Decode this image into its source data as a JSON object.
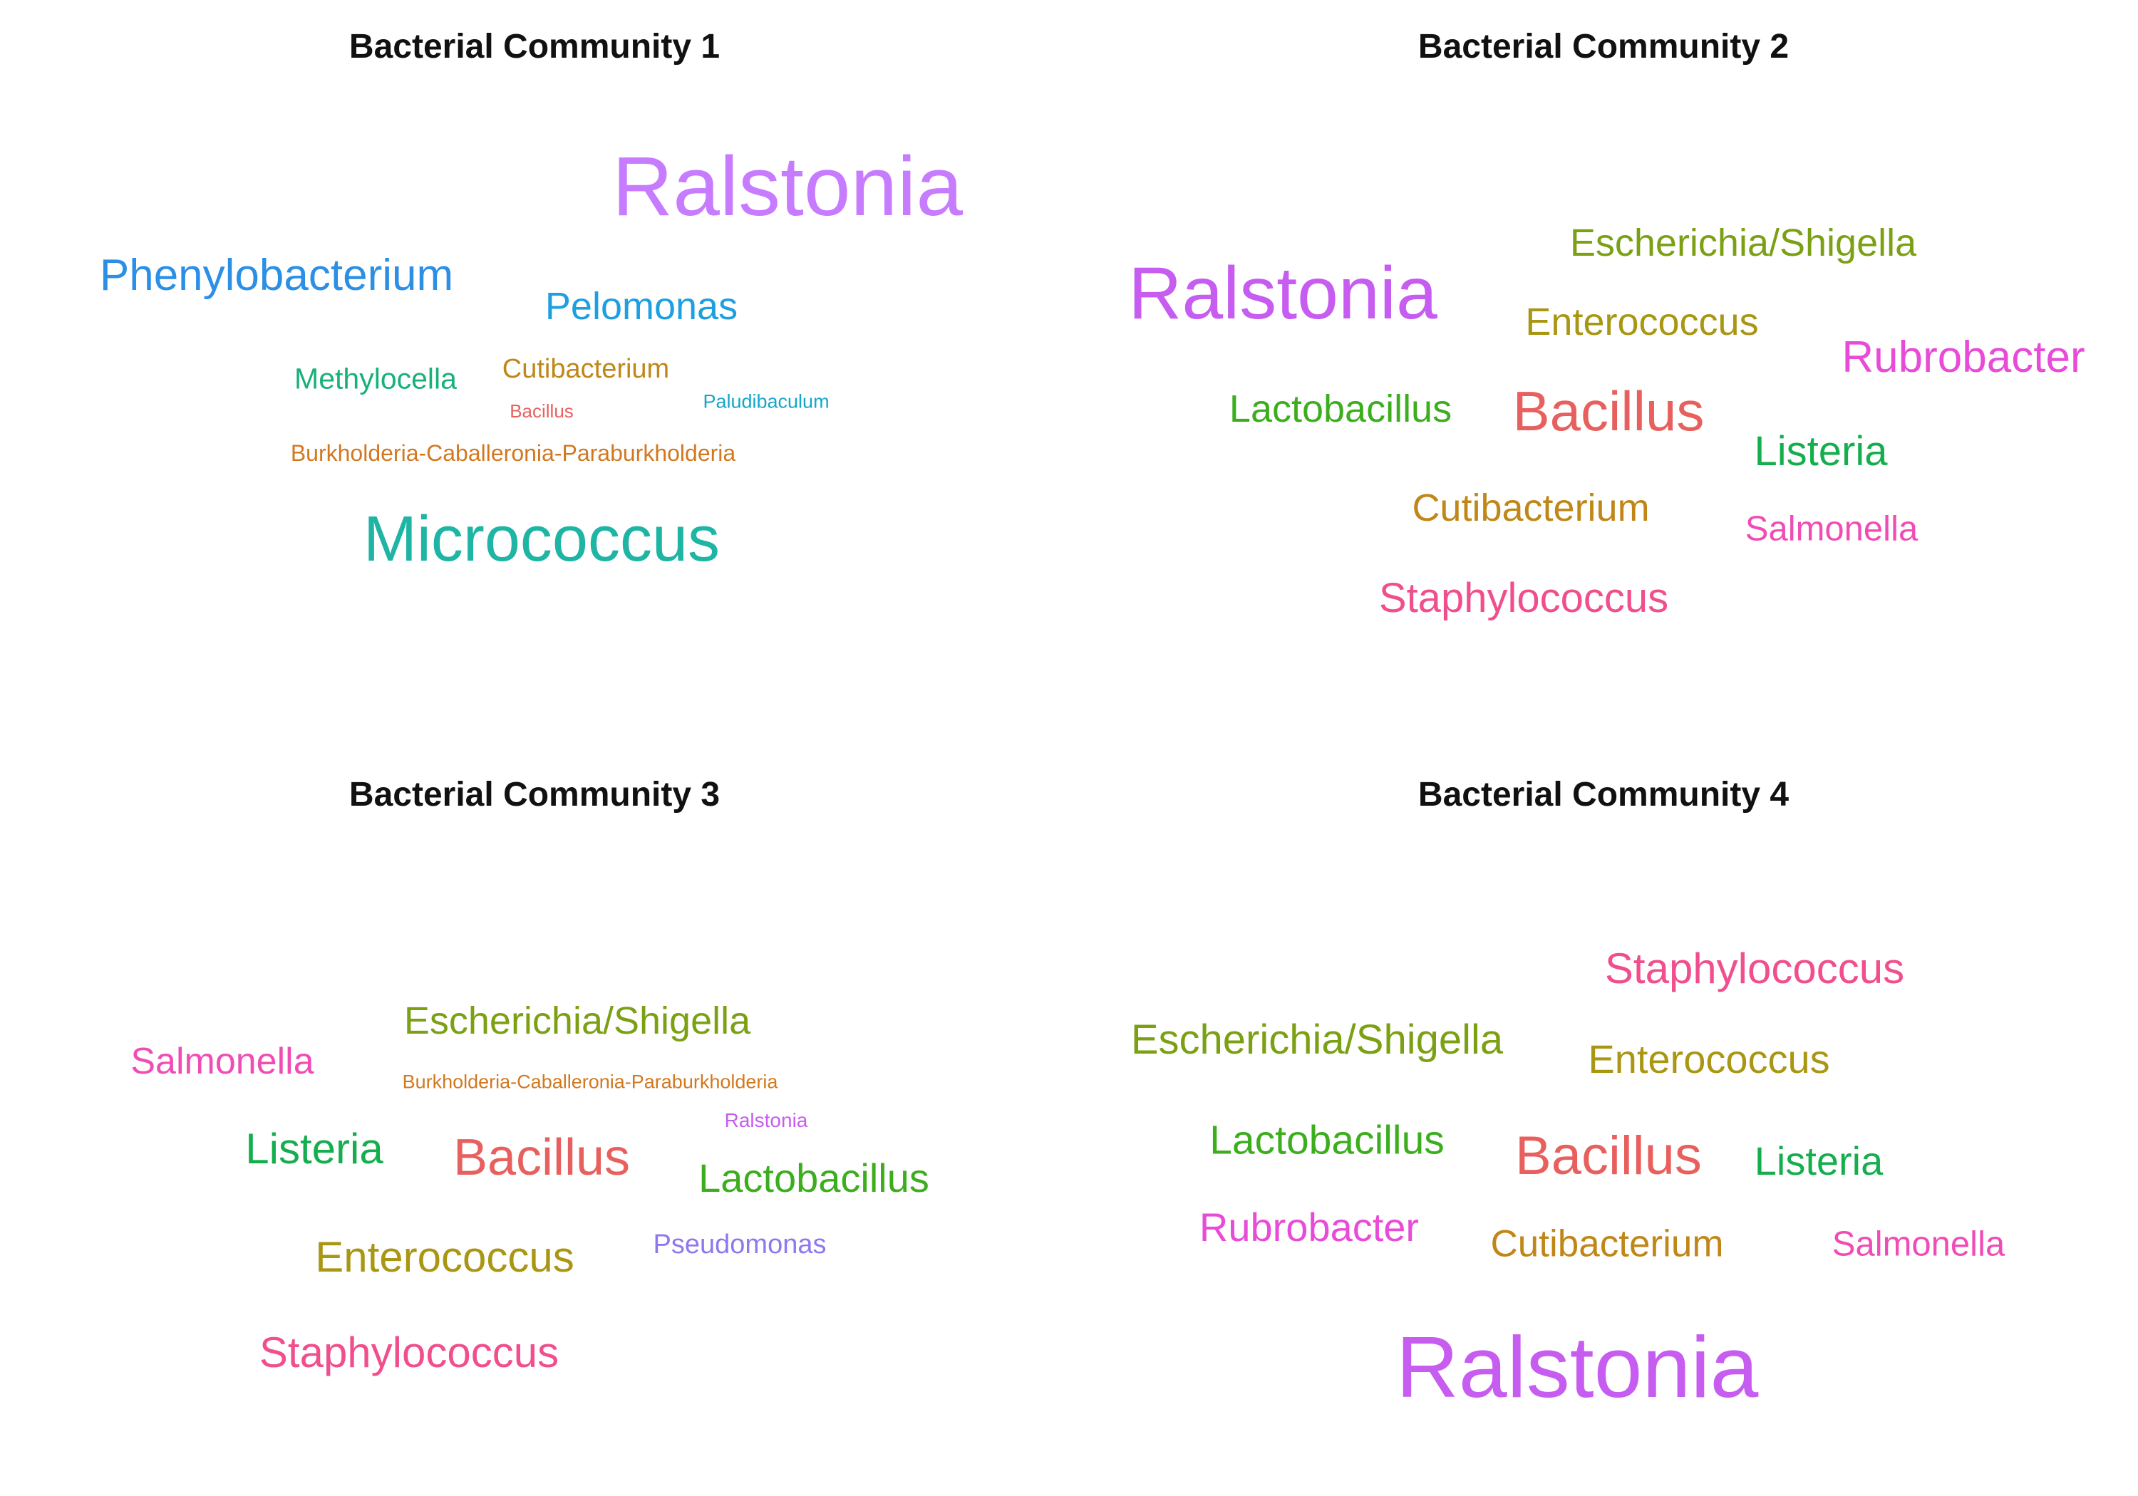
{
  "chart_data": [
    {
      "type": "wordcloud",
      "title": "Bacterial Community 1",
      "words": [
        {
          "text": "Ralstonia",
          "weight": 100,
          "color": "#C77CFF"
        },
        {
          "text": "Micrococcus",
          "weight": 77,
          "color": "#1FB5A5"
        },
        {
          "text": "Phenylobacterium",
          "weight": 55,
          "color": "#2C8FE6"
        },
        {
          "text": "Pelomonas",
          "weight": 46,
          "color": "#1E9FE0"
        },
        {
          "text": "Methylocella",
          "weight": 37,
          "color": "#19B07A"
        },
        {
          "text": "Cutibacterium",
          "weight": 35,
          "color": "#C08718"
        },
        {
          "text": "Burkholderia-Caballeronia-Paraburkholderia",
          "weight": 32,
          "color": "#D2781E"
        },
        {
          "text": "Paludibaculum",
          "weight": 27,
          "color": "#14A6C9"
        },
        {
          "text": "Bacillus",
          "weight": 26,
          "color": "#E8605E"
        }
      ]
    },
    {
      "type": "wordcloud",
      "title": "Bacterial Community 2",
      "words": [
        {
          "text": "Ralstonia",
          "weight": 100,
          "color": "#C75CF0"
        },
        {
          "text": "Bacillus",
          "weight": 77,
          "color": "#E8605E"
        },
        {
          "text": "Rubrobacter",
          "weight": 62,
          "color": "#E84BD8"
        },
        {
          "text": "Escherichia/Shigella",
          "weight": 60,
          "color": "#7CA013"
        },
        {
          "text": "Lactobacillus",
          "weight": 60,
          "color": "#3CAE1E"
        },
        {
          "text": "Listeria",
          "weight": 60,
          "color": "#15AE4E"
        },
        {
          "text": "Cutibacterium",
          "weight": 60,
          "color": "#C08718"
        },
        {
          "text": "Staphylococcus",
          "weight": 60,
          "color": "#F04E8C"
        },
        {
          "text": "Enterococcus",
          "weight": 56,
          "color": "#A99613"
        },
        {
          "text": "Salmonella",
          "weight": 53,
          "color": "#F04CB5"
        }
      ]
    },
    {
      "type": "wordcloud",
      "title": "Bacterial Community 3",
      "words": [
        {
          "text": "Bacillus",
          "weight": 100,
          "color": "#E8605E"
        },
        {
          "text": "Escherichia/Shigella",
          "weight": 74,
          "color": "#7CA013"
        },
        {
          "text": "Lactobacillus",
          "weight": 74,
          "color": "#3CAE1E"
        },
        {
          "text": "Enterococcus",
          "weight": 80,
          "color": "#A99613"
        },
        {
          "text": "Staphylococcus",
          "weight": 80,
          "color": "#F04E8C"
        },
        {
          "text": "Listeria",
          "weight": 80,
          "color": "#15AE4E"
        },
        {
          "text": "Salmonella",
          "weight": 69,
          "color": "#F04CB5"
        },
        {
          "text": "Pseudomonas",
          "weight": 50,
          "color": "#8F77F0"
        },
        {
          "text": "Ralstonia",
          "weight": 37,
          "color": "#C75CF0"
        },
        {
          "text": "Burkholderia-Caballeronia-Paraburkholderia",
          "weight": 37,
          "color": "#D2781E"
        }
      ]
    },
    {
      "type": "wordcloud",
      "title": "Bacterial Community 4",
      "words": [
        {
          "text": "Ralstonia",
          "weight": 100,
          "color": "#C75CF0"
        },
        {
          "text": "Bacillus",
          "weight": 70,
          "color": "#E8605E"
        },
        {
          "text": "Staphylococcus",
          "weight": 55,
          "color": "#F04E8C"
        },
        {
          "text": "Escherichia/Shigella",
          "weight": 55,
          "color": "#7CA013"
        },
        {
          "text": "Enterococcus",
          "weight": 53,
          "color": "#A99613"
        },
        {
          "text": "Lactobacillus",
          "weight": 53,
          "color": "#3CAE1E"
        },
        {
          "text": "Rubrobacter",
          "weight": 53,
          "color": "#E84BD8"
        },
        {
          "text": "Listeria",
          "weight": 53,
          "color": "#15AE4E"
        },
        {
          "text": "Cutibacterium",
          "weight": 48,
          "color": "#C08718"
        },
        {
          "text": "Salmonella",
          "weight": 44,
          "color": "#F04CB5"
        }
      ]
    }
  ]
}
